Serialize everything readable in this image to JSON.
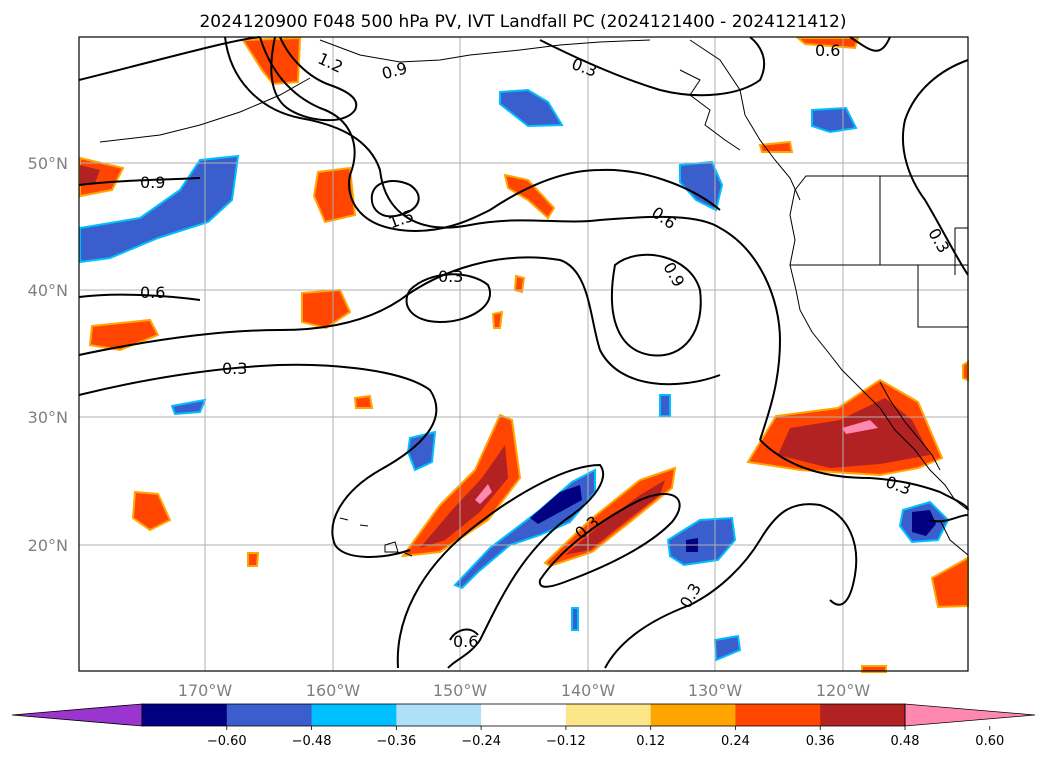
{
  "title": "2024120900 F048 500 hPa PV, IVT Landfall PC (2024121400 - 2024121412)",
  "lat_labels": [
    "50°N",
    "40°N",
    "30°N",
    "20°N"
  ],
  "lon_labels": [
    "170°W",
    "160°W",
    "150°W",
    "140°W",
    "130°W",
    "120°W"
  ],
  "colorbar": {
    "ticks": [
      "−0.60",
      "−0.48",
      "−0.36",
      "−0.24",
      "−0.12",
      "0.12",
      "0.24",
      "0.36",
      "0.48",
      "0.60"
    ],
    "colors": [
      "#9a35d0",
      "#000080",
      "#3a5fcd",
      "#00bfff",
      "#aee0f7",
      "#ffffff",
      "#fde68a",
      "#ffa500",
      "#ff4500",
      "#b22222",
      "#ff88b0"
    ]
  },
  "contour_labels": [
    "0.9",
    "0.6",
    "0.3",
    "1.5",
    "1.2",
    "0.9",
    "0.3",
    "0.6",
    "0.9",
    "0.3",
    "0.3",
    "0.3",
    "0.3",
    "0.6",
    "0.6",
    "0.3"
  ],
  "colors": {
    "pos_strong": "#ff4500",
    "pos_max": "#b22222",
    "pos_edge": "#ffa500",
    "neg_mid": "#3a5fcd",
    "neg_edge": "#00bfff",
    "neg_max": "#000080",
    "pink": "#ff88b0"
  }
}
